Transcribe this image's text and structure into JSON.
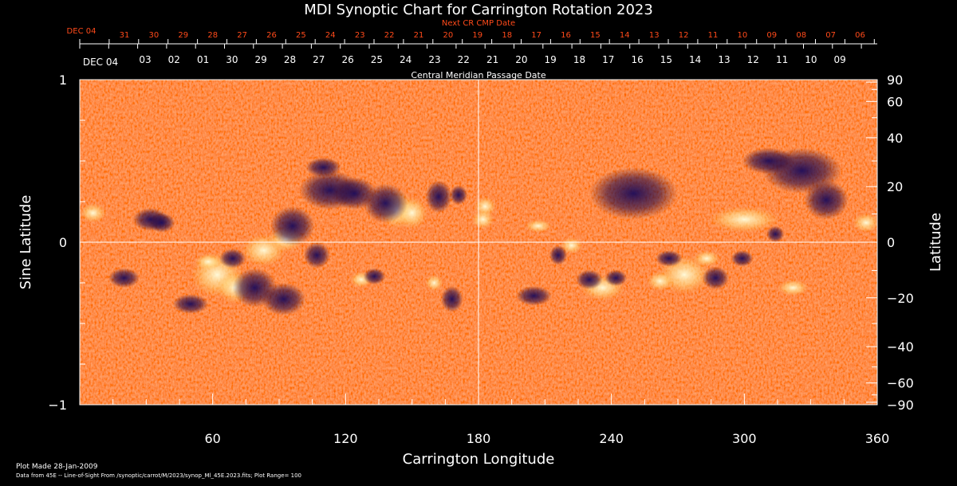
{
  "title": "MDI Synoptic Chart for Carrington Rotation 2023",
  "chart_data": {
    "type": "heatmap",
    "title": "MDI Synoptic Chart for Carrington Rotation 2023",
    "xlabel": "Carrington Longitude",
    "ylabel": "Sine Latitude",
    "y2label": "Latitude",
    "xlim": [
      0,
      360
    ],
    "ylim": [
      -1,
      1
    ],
    "x_ticks": [
      "60",
      "120",
      "180",
      "240",
      "300",
      "360"
    ],
    "x_tick_values": [
      60,
      120,
      180,
      240,
      300,
      360
    ],
    "y_ticks": [
      "1",
      "0",
      "−1"
    ],
    "y_tick_values": [
      1,
      0,
      -1
    ],
    "y2_ticks": [
      "90",
      "60",
      "40",
      "20",
      "0",
      "−20",
      "−40",
      "−60",
      "−90"
    ],
    "y2_tick_values": [
      90,
      60,
      40,
      20,
      0,
      -20,
      -40,
      -60,
      -90
    ],
    "top_axis_label": "Central Meridian Passage Date",
    "top_axis_first": "DEC 04",
    "top_axis_days": [
      "03",
      "02",
      "01",
      "30",
      "29",
      "28",
      "27",
      "26",
      "25",
      "24",
      "23",
      "22",
      "21",
      "20",
      "19",
      "18",
      "17",
      "16",
      "15",
      "14",
      "13",
      "12",
      "11",
      "10",
      "09"
    ],
    "next_cr_label": "Next CR CMP Date",
    "next_cr_first": "DEC 04",
    "next_cr_days": [
      "31",
      "30",
      "29",
      "28",
      "27",
      "26",
      "25",
      "24",
      "23",
      "22",
      "21",
      "20",
      "19",
      "18",
      "17",
      "16",
      "15",
      "14",
      "13",
      "12",
      "11",
      "10",
      "09",
      "08",
      "07",
      "06"
    ],
    "plot_range": 100,
    "grid_lines": "longitude 180, sine latitude 0",
    "colors": {
      "background_field": "#ff5a0a",
      "positive": "#ffffc0",
      "negative": "#1a0a5a",
      "next_cr_text": "#ff4a1a"
    }
  },
  "footer": {
    "plot_made": "Plot Made 28-Jan-2009",
    "data_source": "Data from 45E -- Line-of-Sight From /synoptic/carrot/M/2023/synop_Ml_45E.2023.fits; Plot Range=  100"
  }
}
